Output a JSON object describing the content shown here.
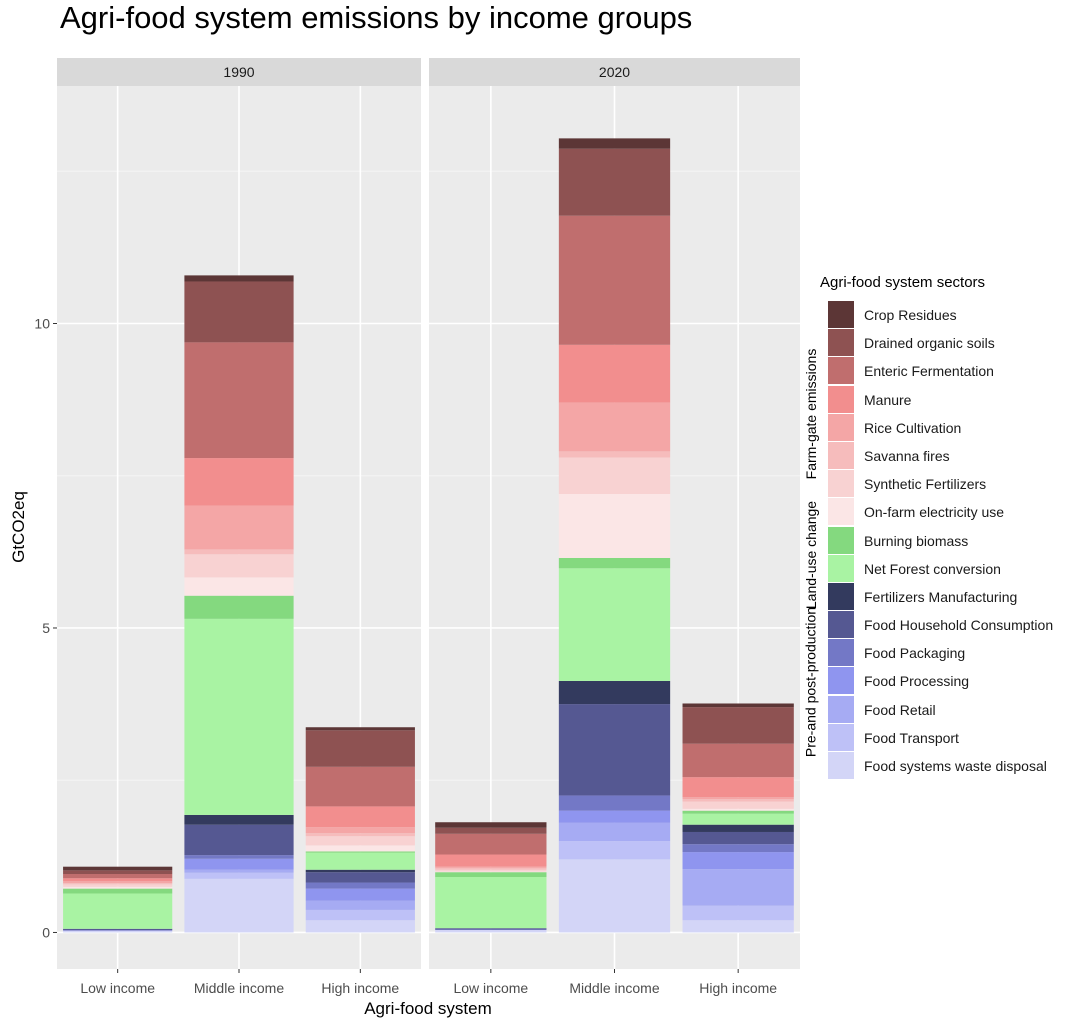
{
  "chart_data": {
    "type": "bar",
    "stacked": true,
    "title": "Agri-food system emissions by income groups",
    "xlabel": "Agri-food system",
    "ylabel": "GtCO2eq",
    "ylim": [
      -0.6,
      13.9
    ],
    "yticks": [
      0,
      5,
      10
    ],
    "facets": [
      "1990",
      "2020"
    ],
    "categories": [
      "Low income",
      "Middle income",
      "High income"
    ],
    "grid": true,
    "legend_position": "right",
    "legend_title": "Agri-food system sectors",
    "legend_groups": [
      {
        "label": "Farm-gate emissions",
        "series": [
          "Crop Residues",
          "Drained organic soils",
          "Enteric Fermentation",
          "Manure",
          "Rice Cultivation",
          "Savanna fires",
          "Synthetic Fertilizers",
          "On-farm electricity use"
        ]
      },
      {
        "label": "Land-use change",
        "series": [
          "Burning biomass",
          "Net Forest conversion"
        ]
      },
      {
        "label": "Pre-and post-production",
        "series": [
          "Fertilizers Manufacturing",
          "Food Household Consumption",
          "Food Packaging",
          "Food Processing",
          "Food Retail",
          "Food Transport",
          "Food systems waste disposal"
        ]
      }
    ],
    "series": [
      {
        "name": "Crop Residues",
        "color": "#5c3636",
        "values_1990": [
          0.06,
          0.1,
          0.05
        ],
        "values_2020": [
          0.09,
          0.17,
          0.06
        ]
      },
      {
        "name": "Drained organic soils",
        "color": "#8e5252",
        "values_1990": [
          0.06,
          1.0,
          0.6
        ],
        "values_2020": [
          0.1,
          1.1,
          0.6
        ]
      },
      {
        "name": "Enteric Fermentation",
        "color": "#c06e6e",
        "values_1990": [
          0.07,
          1.9,
          0.65
        ],
        "values_2020": [
          0.34,
          2.12,
          0.55
        ]
      },
      {
        "name": "Manure",
        "color": "#f28e8e",
        "values_1990": [
          0.05,
          0.78,
          0.34
        ],
        "values_2020": [
          0.2,
          0.95,
          0.33
        ]
      },
      {
        "name": "Rice Cultivation",
        "color": "#f4a6a6",
        "values_1990": [
          0.03,
          0.72,
          0.1
        ],
        "values_2020": [
          0.02,
          0.8,
          0.03
        ]
      },
      {
        "name": "Savanna fires",
        "color": "#f6bcbc",
        "values_1990": [
          0.02,
          0.08,
          0.05
        ],
        "values_2020": [
          0.03,
          0.1,
          0.04
        ]
      },
      {
        "name": "Synthetic Fertilizers",
        "color": "#f8d2d2",
        "values_1990": [
          0.04,
          0.38,
          0.15
        ],
        "values_2020": [
          0.03,
          0.6,
          0.12
        ]
      },
      {
        "name": "On-farm electricity use",
        "color": "#fbe6e6",
        "values_1990": [
          0.03,
          0.3,
          0.1
        ],
        "values_2020": [
          0.01,
          1.05,
          0.03
        ]
      },
      {
        "name": "Burning biomass",
        "color": "#84d97f",
        "values_1990": [
          0.08,
          0.38,
          0.02
        ],
        "values_2020": [
          0.08,
          0.17,
          0.05
        ]
      },
      {
        "name": "Net Forest conversion",
        "color": "#a9f3a3",
        "values_1990": [
          0.58,
          3.22,
          0.28
        ],
        "values_2020": [
          0.84,
          1.85,
          0.18
        ]
      },
      {
        "name": "Fertilizers Manufacturing",
        "color": "#333a5e",
        "values_1990": [
          0.0,
          0.16,
          0.04
        ],
        "values_2020": [
          0.0,
          0.38,
          0.12
        ]
      },
      {
        "name": "Food Household Consumption",
        "color": "#555892",
        "values_1990": [
          0.02,
          0.5,
          0.17
        ],
        "values_2020": [
          0.02,
          1.5,
          0.2
        ]
      },
      {
        "name": "Food Packaging",
        "color": "#7378c6",
        "values_1990": [
          0.01,
          0.06,
          0.1
        ],
        "values_2020": [
          0.01,
          0.25,
          0.13
        ]
      },
      {
        "name": "Food Processing",
        "color": "#8f95ef",
        "values_1990": [
          0.0,
          0.18,
          0.2
        ],
        "values_2020": [
          0.0,
          0.2,
          0.28
        ]
      },
      {
        "name": "Food Retail",
        "color": "#a6abf3",
        "values_1990": [
          0.0,
          0.05,
          0.15
        ],
        "values_2020": [
          0.0,
          0.3,
          0.6
        ]
      },
      {
        "name": "Food Transport",
        "color": "#bec1f7",
        "values_1990": [
          0.0,
          0.1,
          0.17
        ],
        "values_2020": [
          0.0,
          0.3,
          0.24
        ]
      },
      {
        "name": "Food systems waste disposal",
        "color": "#d3d5f7",
        "values_1990": [
          0.03,
          0.88,
          0.2
        ],
        "values_2020": [
          0.04,
          1.2,
          0.2
        ]
      }
    ]
  }
}
